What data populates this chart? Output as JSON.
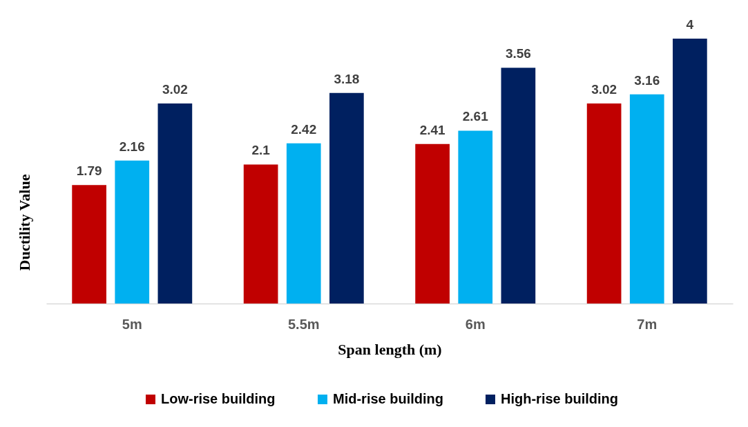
{
  "chart_data": {
    "type": "bar",
    "xlabel": "Span length (m)",
    "ylabel": "Ductility Value",
    "categories": [
      "5m",
      "5.5m",
      "6m",
      "7m"
    ],
    "series": [
      {
        "name": "Low-rise building",
        "color": "#c00000",
        "values": [
          1.79,
          2.1,
          2.41,
          3.02
        ]
      },
      {
        "name": "Mid-rise building",
        "color": "#00b0f0",
        "values": [
          2.16,
          2.42,
          2.61,
          3.16
        ]
      },
      {
        "name": "High-rise building",
        "color": "#002060",
        "values": [
          3.02,
          3.18,
          3.56,
          4
        ]
      }
    ],
    "data_labels": true,
    "legend": "bottom",
    "tick_labels": "x"
  }
}
